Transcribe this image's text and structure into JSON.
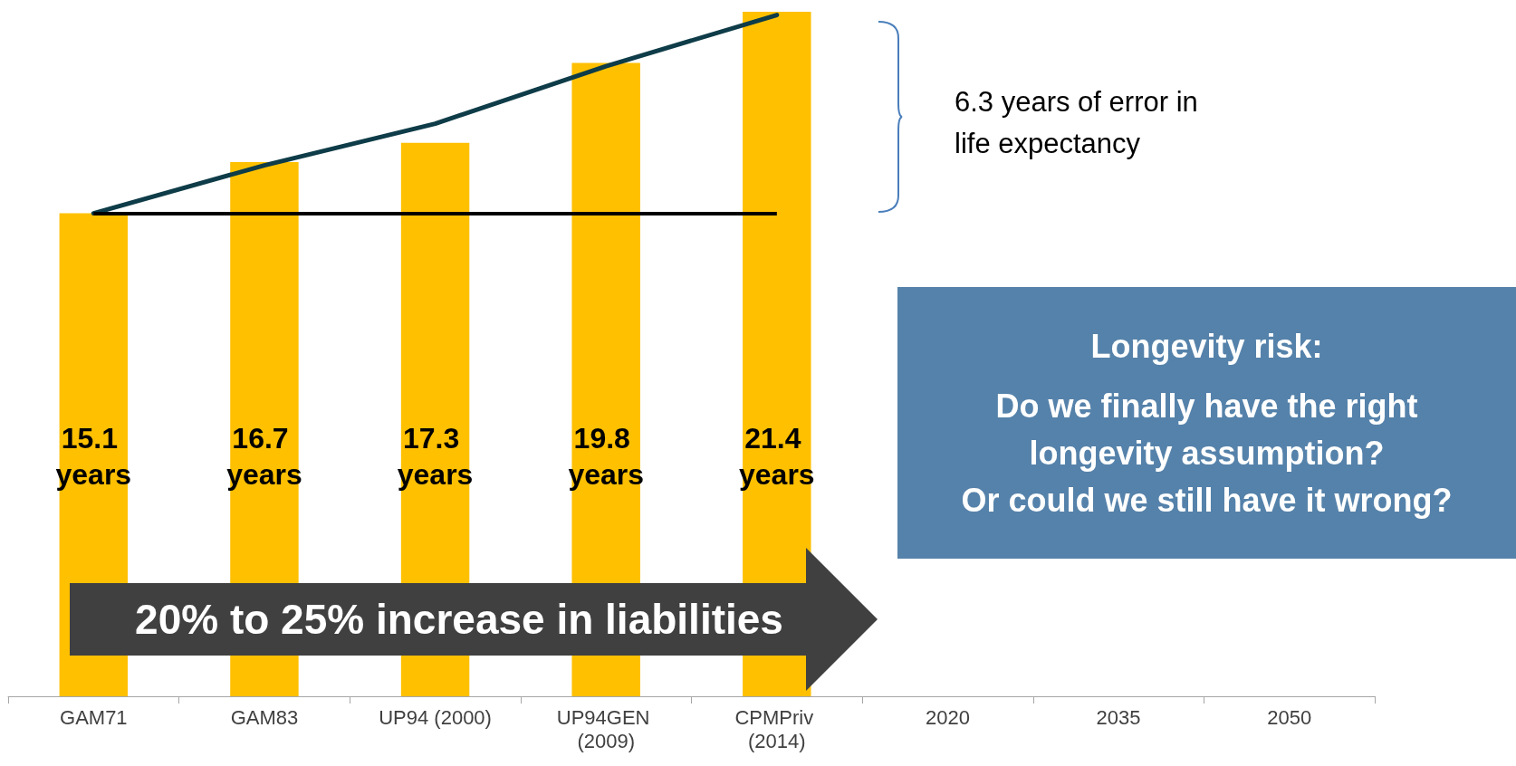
{
  "chart_data": {
    "type": "bar",
    "categories": [
      "GAM71",
      "GAM83",
      "UP94 (2000)",
      "UP94GEN (2009)",
      "CPMPriv (2014)",
      "2020",
      "2035",
      "2050"
    ],
    "series": [
      {
        "color": "#ffc000",
        "values": [
          15.1,
          16.7,
          17.3,
          19.8,
          21.4,
          null,
          null,
          null
        ],
        "value_labels": [
          "15.1 years",
          "16.7 years",
          "17.3 years",
          "19.8 years",
          "21.4 years",
          null,
          null,
          null
        ]
      },
      {
        "type": "line",
        "color": "#0e3c48",
        "values": [
          15.1,
          16.6,
          17.9,
          19.7,
          21.3,
          null,
          null,
          null
        ]
      }
    ],
    "ylim": [
      0,
      21.4
    ],
    "tick_labels": "x",
    "grid": false,
    "marker": "none",
    "line_style": "solid",
    "ref_lines": [
      {
        "axis": "y",
        "value": 15.1,
        "color": "#000000"
      }
    ],
    "annotations": [
      "6.3 years of error in life expectancy",
      "20% to 25% increase in liabilities",
      "Longevity risk:",
      "Do we finally have the right\nlongevity assumption?\nOr could we still have it wrong?"
    ]
  }
}
